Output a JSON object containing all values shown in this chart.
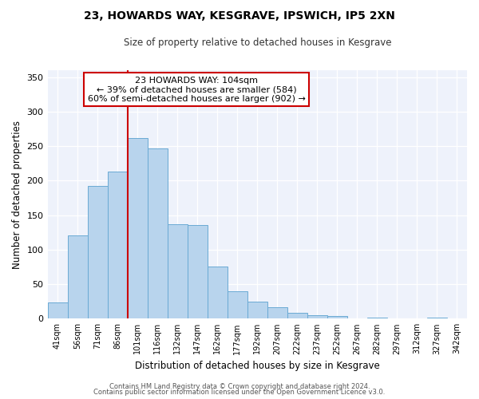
{
  "title": "23, HOWARDS WAY, KESGRAVE, IPSWICH, IP5 2XN",
  "subtitle": "Size of property relative to detached houses in Kesgrave",
  "xlabel": "Distribution of detached houses by size in Kesgrave",
  "ylabel": "Number of detached properties",
  "bar_labels": [
    "41sqm",
    "56sqm",
    "71sqm",
    "86sqm",
    "101sqm",
    "116sqm",
    "132sqm",
    "147sqm",
    "162sqm",
    "177sqm",
    "192sqm",
    "207sqm",
    "222sqm",
    "237sqm",
    "252sqm",
    "267sqm",
    "282sqm",
    "297sqm",
    "312sqm",
    "327sqm",
    "342sqm"
  ],
  "bar_values": [
    24,
    121,
    192,
    213,
    262,
    247,
    137,
    136,
    76,
    40,
    25,
    16,
    8,
    5,
    4,
    0,
    2,
    0,
    0,
    2,
    0
  ],
  "bar_color": "#b8d4ed",
  "bar_edge_color": "#6aaad4",
  "vline_x": 4,
  "vline_color": "#cc0000",
  "annotation_line1": "23 HOWARDS WAY: 104sqm",
  "annotation_line2": "← 39% of detached houses are smaller (584)",
  "annotation_line3": "60% of semi-detached houses are larger (902) →",
  "annotation_box_facecolor": "#ffffff",
  "annotation_box_edgecolor": "#cc0000",
  "ylim": [
    0,
    360
  ],
  "yticks": [
    0,
    50,
    100,
    150,
    200,
    250,
    300,
    350
  ],
  "bg_color": "#eef2fb",
  "grid_color": "#ffffff",
  "footer1": "Contains HM Land Registry data © Crown copyright and database right 2024.",
  "footer2": "Contains public sector information licensed under the Open Government Licence v3.0."
}
